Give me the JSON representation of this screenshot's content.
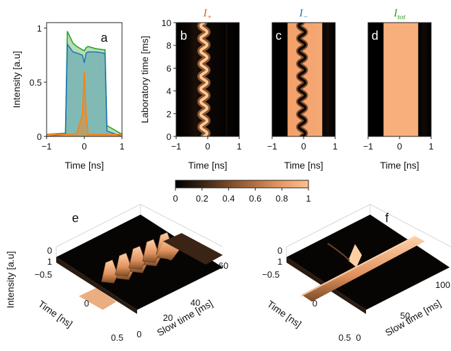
{
  "chart_data": [
    {
      "panel": "a",
      "type": "area",
      "xlabel": "Time [ns]",
      "ylabel": "Intensity [a.u]",
      "xlim": [
        -1,
        1
      ],
      "ylim": [
        0,
        1.05
      ],
      "xticks": [
        "−1",
        "0",
        "1"
      ],
      "yticks": [
        "0",
        "0.5",
        "1"
      ],
      "x": [
        -1.0,
        -0.5,
        -0.45,
        -0.3,
        -0.2,
        -0.05,
        0.0,
        0.05,
        0.1,
        0.3,
        0.5,
        0.55,
        0.6,
        1.0
      ],
      "series": [
        {
          "values": [
            0.02,
            0.03,
            0.97,
            0.86,
            0.83,
            0.8,
            0.79,
            0.82,
            0.83,
            0.81,
            0.8,
            0.8,
            0.1,
            0.02
          ],
          "color": "#2ca02c"
        },
        {
          "values": [
            0.0,
            0.02,
            0.85,
            0.78,
            0.77,
            0.75,
            0.68,
            0.77,
            0.78,
            0.78,
            0.77,
            0.76,
            0.05,
            0.0
          ],
          "color": "#1f77b4"
        },
        {
          "values": [
            0.02,
            0.02,
            0.02,
            0.02,
            0.03,
            0.2,
            0.6,
            0.2,
            0.02,
            0.02,
            0.02,
            0.02,
            0.02,
            0.02
          ],
          "color": "#ff7f0e"
        }
      ],
      "grid": false
    },
    {
      "panel": "b",
      "type": "heatmap",
      "title": "I+",
      "title_main": "I",
      "title_sub": "+",
      "title_color": "#e85a1f",
      "xlabel": "Time [ns]",
      "ylabel": "Laboratory time [ms]",
      "xlim": [
        -1,
        1
      ],
      "ylim": [
        0,
        10
      ],
      "xticks": [
        "−1",
        "0",
        "1"
      ],
      "yticks": [
        "0",
        "2",
        "4",
        "6",
        "8",
        "10"
      ],
      "trace_center_ns": -0.12,
      "trace_amplitude_ns": 0.1,
      "oscillations": 9
    },
    {
      "panel": "c",
      "type": "heatmap",
      "title": "I−",
      "title_main": "I",
      "title_sub": "−",
      "title_color": "#1f77b4",
      "xlabel": "Time [ns]",
      "xlim": [
        -1,
        1
      ],
      "ylim": [
        0,
        10
      ],
      "xticks": [
        "−1",
        "0",
        "1"
      ],
      "pulse_start_ns": -0.5,
      "pulse_end_ns": 0.6,
      "dip_center_ns": -0.05,
      "dip_amplitude_ns": 0.1,
      "oscillations": 9
    },
    {
      "panel": "d",
      "type": "heatmap",
      "title": "Itot",
      "title_main": "I",
      "title_sub": "tot",
      "title_color": "#2ca02c",
      "xlabel": "Time [ns]",
      "xlim": [
        -1,
        1
      ],
      "ylim": [
        0,
        10
      ],
      "xticks": [
        "−1",
        "0",
        "1"
      ],
      "pulse_start_ns": -0.5,
      "pulse_end_ns": 0.6
    },
    {
      "panel": "colorbar",
      "type": "colorbar",
      "range": [
        0,
        1
      ],
      "ticks": [
        "0",
        "0.2",
        "0.4",
        "0.6",
        "0.8",
        "1"
      ],
      "colors": [
        "#000000",
        "#3a2212",
        "#7a4a26",
        "#b57040",
        "#e89a66",
        "#ffc08c"
      ]
    },
    {
      "panel": "e",
      "type": "surface",
      "zlabel": "Intensity [a.u]",
      "xlabel": "Time [ns]",
      "ylabel": "Slow time [ms]",
      "xticks": [
        "−0.5",
        "0",
        "0.5"
      ],
      "yticks": [
        "0",
        "20",
        "40",
        "60"
      ],
      "zticks": [
        "0",
        "1"
      ]
    },
    {
      "panel": "f",
      "type": "surface",
      "xlabel": "Time [ns]",
      "ylabel": "Slow time [ms]",
      "xticks": [
        "−0.5",
        "0",
        "0.5"
      ],
      "yticks": [
        "0",
        "50",
        "100"
      ],
      "zticks": [
        "0",
        "1"
      ]
    }
  ]
}
